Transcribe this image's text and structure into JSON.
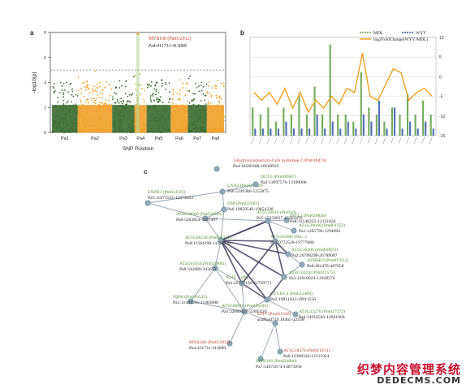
{
  "panel_labels": {
    "a": "a",
    "b": "b",
    "c": "c"
  },
  "manhattan": {
    "ylabel": "-log10(p)",
    "xlabel": "SNP Position",
    "highlight": {
      "gene": "MYB108 (Pm012912)",
      "position": "Pa4:411731-413009"
    }
  },
  "chart_data": [
    {
      "type": "scatter",
      "title": "",
      "xlabel": "SNP Position",
      "ylabel": "-log10(p)",
      "ylim": [
        0,
        8
      ],
      "yticks": [
        0,
        2,
        4,
        6,
        8
      ],
      "categories": [
        "Pa1",
        "Pa2",
        "Pa3",
        "Pa4",
        "Pa5",
        "Pa6",
        "Pa7",
        "Pa8"
      ],
      "threshold": 5,
      "chromosome_colors": [
        "#3a6b2e",
        "#f0a028",
        "#3a6b2e",
        "#f0a028",
        "#3a6b2e",
        "#f0a028",
        "#3a6b2e",
        "#f0a028"
      ],
      "peak_chromosome": "Pa4",
      "peak_value": 8.2,
      "annotation": {
        "gene": "MYB108 (Pm012912)",
        "position": "Pa4:411731-413009"
      }
    },
    {
      "type": "bar",
      "title": "",
      "legend": [
        "MDL",
        "WYY",
        "log2FoldChange(WYY/MDL)"
      ],
      "legend_position": "top-right",
      "ylim_left": [
        0,
        14
      ],
      "yticks_left": [
        0,
        2,
        4,
        6,
        8,
        10,
        12,
        14
      ],
      "ylim_right": [
        -15,
        10
      ],
      "yticks_right": [
        10,
        5,
        0,
        -5,
        -10,
        -15
      ],
      "grid": true,
      "colors": {
        "MDL": "#5a9e3a",
        "WYY": "#2f56a8",
        "line": "#f0a020"
      },
      "series": [
        {
          "name": "MDL",
          "values": [
            4,
            3,
            4,
            2,
            4,
            3,
            6,
            3,
            7,
            3,
            13,
            3,
            3,
            2,
            9,
            4,
            3,
            2,
            4,
            3,
            6,
            3,
            5,
            3
          ]
        },
        {
          "name": "WYY",
          "values": [
            1,
            1,
            1,
            1,
            2,
            1,
            1,
            1,
            3,
            1,
            2,
            1,
            2,
            1,
            3,
            2,
            5,
            1,
            4,
            1,
            2,
            1,
            2,
            1
          ]
        },
        {
          "name": "log2FoldChange(WYY/MDL)",
          "values": [
            -4,
            -6,
            -4,
            -7,
            -3,
            -8,
            -4,
            -9,
            -6,
            -8,
            -5,
            -7,
            -3,
            -4,
            6,
            -5,
            -6,
            -2,
            2,
            1,
            -6,
            -4,
            -3,
            -5
          ]
        }
      ]
    }
  ],
  "network": {
    "nodes": [
      {
        "name": "3-hydroxyisobutyryl-CoA hydrolase 2 (Pm018474)",
        "pos": "Pa4:18560308-18560922",
        "color": "red"
      },
      {
        "name": "LAX2 (Pm020838)",
        "pos": "Pa6:5249386-5252875",
        "color": "green"
      },
      {
        "name": "DUT1 (Pm009507)",
        "pos": "Pa2:13097576-13100068",
        "color": "green"
      },
      {
        "name": "EXPB3 (Pm014322)",
        "pos": "Pa5:11675531-11674622",
        "color": "green"
      },
      {
        "name": "FBP (Pm022685)",
        "pos": "Pa6:19850549-19854330",
        "color": "green"
      },
      {
        "name": "INTL3 (Pm026848)",
        "pos": "Pa8:12148325-12151024",
        "color": "green"
      },
      {
        "name": "AT4G38660 (Pm020849)",
        "pos": "Pa6:5263854-5267497",
        "color": "green"
      },
      {
        "name": "AT5G26810 (Pm010)",
        "pos": "Pa5:15250027-15262476",
        "color": "green"
      },
      {
        "name": "AT1G20060 (Pm001252)",
        "pos": "Pa1:1285790-1294094",
        "color": "green"
      },
      {
        "name": "AT5G66230 (Pm026752)",
        "pos": "Pa8:11564190-11565710",
        "color": "green"
      },
      {
        "name": "AT5G01880 (Pm...)",
        "pos": "Pa1:9772528-19777086",
        "color": "green"
      },
      {
        "name": "AT2G36200 (Pm028073)",
        "pos": "Pa2:26788298-26789087",
        "color": "green"
      },
      {
        "name": "AT4G01050 (Pm020882)",
        "pos": "Pa8:342889-343653",
        "color": "green"
      },
      {
        "name": "ATMSH3 (Pm007632)",
        "pos": "Pa8:481478-487858",
        "color": "green"
      },
      {
        "name": "AT4G14350 (Pm011573)",
        "pos": "Pa3:12018923-12020276",
        "color": "green"
      },
      {
        "name": "AT4G... (Pm...)",
        "pos": "Pa1:22757130-22769771",
        "color": "green"
      },
      {
        "name": "CYCB1;4 (Pm012408)",
        "pos": "Pa3:19911103-19911556",
        "color": "green"
      },
      {
        "name": "IQD6 (Pm016523)",
        "pos": "Pa1:11481195-11483000",
        "color": "green"
      },
      {
        "name": "AT4G33270 (Pm027372)",
        "pos": "Pa4:14918583-14921066",
        "color": "green"
      },
      {
        "name": "AT5G00910 (Pm016103)",
        "pos": "Pa1:22689357-22693185",
        "color": "green"
      },
      {
        "name": "E2F1 (Pm011636)",
        "pos": "scaffold719:18465-22558",
        "color": "red"
      },
      {
        "name": "MYB108 (Pm012912)",
        "pos": "Pa4:411731-413009",
        "color": "red"
      },
      {
        "name": "AT3G18470 (Pm021913)",
        "pos": "Pa6:12308334-12311924",
        "color": "red"
      },
      {
        "name": "MYB106 (Pm024880)",
        "pos": "Pa7:14872674-14873958",
        "color": "green"
      }
    ]
  },
  "watermark": {
    "cn": "织梦内容管理系统",
    "en": "DEDECMS.COM"
  }
}
